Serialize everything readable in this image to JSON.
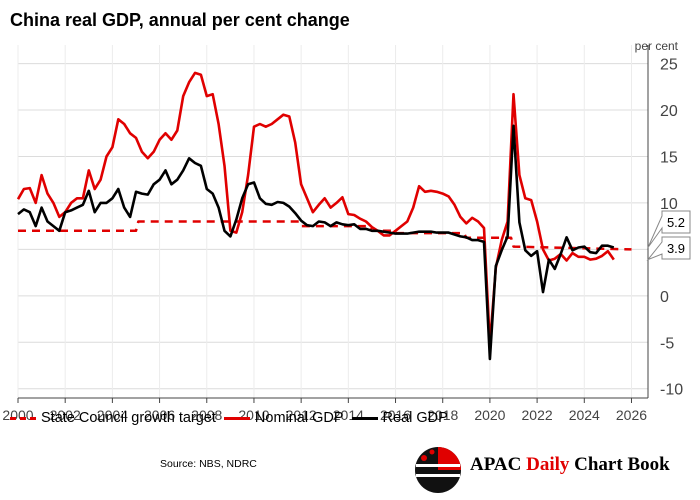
{
  "chart_data": {
    "type": "line",
    "title": "China real GDP, annual per cent change",
    "ylabel": "per cent",
    "xlim": [
      2000,
      2026.7
    ],
    "ylim": [
      -11,
      27
    ],
    "xticks": [
      2000,
      2002,
      2004,
      2006,
      2008,
      2010,
      2012,
      2014,
      2016,
      2018,
      2020,
      2022,
      2024,
      2026
    ],
    "yticks": [
      25,
      20,
      15,
      10,
      5,
      0,
      -5,
      -10
    ],
    "grid": true,
    "legend_position": "bottom",
    "y_axis_position": "right",
    "colors": {
      "target": "#e00000",
      "nominal": "#e00000",
      "real": "#000000"
    },
    "series": [
      {
        "name": "State Council growth target",
        "style": "dashed",
        "x": [
          2000,
          2005,
          2005.1,
          2011.9,
          2012.0,
          2014.9,
          2015.0,
          2015.9,
          2016.0,
          2018.9,
          2019.0,
          2020.9,
          2021.0,
          2026.0
        ],
        "values": [
          7.0,
          7.0,
          8.0,
          8.0,
          7.5,
          7.5,
          7.0,
          7.0,
          6.75,
          6.75,
          6.25,
          6.25,
          5.3,
          5.0
        ]
      },
      {
        "name": "Nominal GDP",
        "style": "solid",
        "x": [
          2000.0,
          2000.25,
          2000.5,
          2000.75,
          2001.0,
          2001.25,
          2001.5,
          2001.75,
          2002.0,
          2002.25,
          2002.5,
          2002.75,
          2003.0,
          2003.25,
          2003.5,
          2003.75,
          2004.0,
          2004.25,
          2004.5,
          2004.75,
          2005.0,
          2005.25,
          2005.5,
          2005.75,
          2006.0,
          2006.25,
          2006.5,
          2006.75,
          2007.0,
          2007.25,
          2007.5,
          2007.75,
          2008.0,
          2008.25,
          2008.5,
          2008.75,
          2009.0,
          2009.25,
          2009.5,
          2009.75,
          2010.0,
          2010.25,
          2010.5,
          2010.75,
          2011.0,
          2011.25,
          2011.5,
          2011.75,
          2012.0,
          2012.25,
          2012.5,
          2012.75,
          2013.0,
          2013.25,
          2013.5,
          2013.75,
          2014.0,
          2014.25,
          2014.5,
          2014.75,
          2015.0,
          2015.25,
          2015.5,
          2015.75,
          2016.0,
          2016.25,
          2016.5,
          2016.75,
          2017.0,
          2017.25,
          2017.5,
          2017.75,
          2018.0,
          2018.25,
          2018.5,
          2018.75,
          2019.0,
          2019.25,
          2019.5,
          2019.75,
          2020.0,
          2020.25,
          2020.5,
          2020.75,
          2021.0,
          2021.25,
          2021.5,
          2021.75,
          2022.0,
          2022.25,
          2022.5,
          2022.75,
          2023.0,
          2023.25,
          2023.5,
          2023.75,
          2024.0,
          2024.25,
          2024.5,
          2024.75,
          2025.0,
          2025.25
        ],
        "values": [
          10.4,
          11.5,
          11.6,
          10.0,
          13.0,
          11.0,
          10.0,
          8.5,
          9.0,
          10.0,
          10.5,
          10.5,
          13.5,
          11.5,
          12.5,
          15.0,
          16.0,
          19.0,
          18.5,
          17.5,
          17.0,
          15.5,
          14.8,
          15.5,
          16.8,
          17.5,
          16.8,
          17.8,
          21.5,
          23.0,
          24.0,
          23.8,
          21.5,
          21.7,
          18.5,
          14.0,
          7.0,
          6.8,
          9.0,
          13.0,
          18.2,
          18.5,
          18.2,
          18.5,
          19.0,
          19.5,
          19.3,
          16.5,
          12.0,
          10.5,
          9.0,
          9.8,
          10.5,
          9.5,
          10.0,
          10.6,
          8.8,
          8.7,
          8.3,
          8.0,
          7.4,
          7.0,
          6.5,
          6.5,
          7.0,
          7.5,
          8.0,
          9.5,
          11.8,
          11.2,
          11.3,
          11.2,
          11.0,
          10.7,
          9.8,
          8.5,
          7.8,
          8.4,
          8.0,
          7.3,
          -5.3,
          3.0,
          6.0,
          8.0,
          21.7,
          13.0,
          10.5,
          10.3,
          8.0,
          5.0,
          3.8,
          4.0,
          4.5,
          3.8,
          4.6,
          4.2,
          4.2,
          3.9,
          4.0,
          4.3,
          4.8,
          3.9
        ]
      },
      {
        "name": "Real GDP",
        "style": "solid",
        "x": [
          2000.0,
          2000.25,
          2000.5,
          2000.75,
          2001.0,
          2001.25,
          2001.5,
          2001.75,
          2002.0,
          2002.25,
          2002.5,
          2002.75,
          2003.0,
          2003.25,
          2003.5,
          2003.75,
          2004.0,
          2004.25,
          2004.5,
          2004.75,
          2005.0,
          2005.25,
          2005.5,
          2005.75,
          2006.0,
          2006.25,
          2006.5,
          2006.75,
          2007.0,
          2007.25,
          2007.5,
          2007.75,
          2008.0,
          2008.25,
          2008.5,
          2008.75,
          2009.0,
          2009.25,
          2009.5,
          2009.75,
          2010.0,
          2010.25,
          2010.5,
          2010.75,
          2011.0,
          2011.25,
          2011.5,
          2011.75,
          2012.0,
          2012.25,
          2012.5,
          2012.75,
          2013.0,
          2013.25,
          2013.5,
          2013.75,
          2014.0,
          2014.25,
          2014.5,
          2014.75,
          2015.0,
          2015.25,
          2015.5,
          2015.75,
          2016.0,
          2016.25,
          2016.5,
          2016.75,
          2017.0,
          2017.25,
          2017.5,
          2017.75,
          2018.0,
          2018.25,
          2018.5,
          2018.75,
          2019.0,
          2019.25,
          2019.5,
          2019.75,
          2020.0,
          2020.25,
          2020.5,
          2020.75,
          2021.0,
          2021.25,
          2021.5,
          2021.75,
          2022.0,
          2022.25,
          2022.5,
          2022.75,
          2023.0,
          2023.25,
          2023.5,
          2023.75,
          2024.0,
          2024.25,
          2024.5,
          2024.75,
          2025.0,
          2025.25
        ],
        "values": [
          8.8,
          9.3,
          9.0,
          7.5,
          9.5,
          8.0,
          7.5,
          7.0,
          9.0,
          9.2,
          9.5,
          9.8,
          11.3,
          9.0,
          10.0,
          10.0,
          10.5,
          11.5,
          9.5,
          8.5,
          11.2,
          11.0,
          10.9,
          12.0,
          12.5,
          13.5,
          12.0,
          12.5,
          13.5,
          14.8,
          14.3,
          14.0,
          11.5,
          11.0,
          9.5,
          7.0,
          6.4,
          8.2,
          10.5,
          12.0,
          12.2,
          10.5,
          9.9,
          9.8,
          10.1,
          10.0,
          9.6,
          8.9,
          8.1,
          7.6,
          7.5,
          8.0,
          7.9,
          7.5,
          7.9,
          7.7,
          7.6,
          7.7,
          7.2,
          7.2,
          7.0,
          7.0,
          6.9,
          6.8,
          6.7,
          6.7,
          6.7,
          6.8,
          6.9,
          6.9,
          6.9,
          6.8,
          6.8,
          6.8,
          6.6,
          6.4,
          6.3,
          6.0,
          6.0,
          5.8,
          -6.8,
          3.2,
          4.9,
          6.4,
          18.3,
          7.9,
          4.9,
          4.3,
          4.8,
          0.4,
          3.9,
          2.9,
          4.5,
          6.3,
          4.9,
          5.2,
          5.3,
          4.7,
          4.6,
          5.4,
          5.4,
          5.2
        ]
      }
    ],
    "end_labels": {
      "real": "5.2",
      "nominal": "3.9"
    }
  },
  "legend": {
    "target": "State Council growth target",
    "nominal": "Nominal GDP",
    "real": "Real GDP"
  },
  "source": "Source: NBS, NDRC",
  "brand": {
    "prefix": "APAC ",
    "accent": "Daily",
    "suffix": " Chart Book"
  }
}
